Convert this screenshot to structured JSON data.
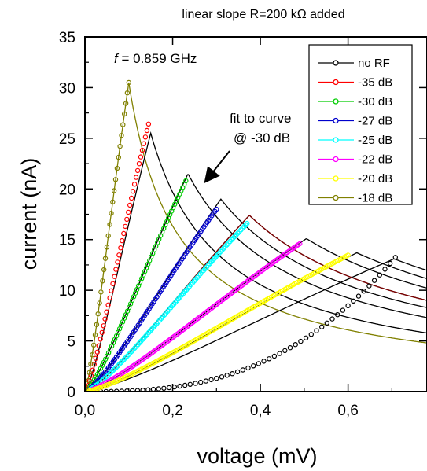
{
  "chart_data": {
    "type": "line",
    "title": "linear slope R=200 kΩ added",
    "xlabel": "voltage  (mV)",
    "ylabel": "current  (nA)",
    "xlim": [
      0,
      0.78
    ],
    "ylim": [
      0,
      35
    ],
    "x_ticks": [
      0.0,
      0.2,
      0.4,
      0.6
    ],
    "x_tick_labels": [
      "0,0",
      "0,2",
      "0,4",
      "0,6"
    ],
    "y_ticks": [
      0,
      5,
      10,
      15,
      20,
      25,
      30,
      35
    ],
    "y_tick_labels": [
      "0",
      "5",
      "10",
      "15",
      "20",
      "25",
      "30",
      "35"
    ],
    "grid": false,
    "legend_position": "top-right",
    "annotations": {
      "frequency_italic": "f",
      "frequency_rest": " = 0.859 GHz",
      "fit_line1": "fit to curve",
      "fit_line2": "@ -30 dB",
      "fit_arrow_to": [
        0.235,
        20.8
      ]
    },
    "series": [
      {
        "name": "no RF",
        "color": "#000000",
        "peak": [
          0.62,
          13.7
        ],
        "end": 0.0
      },
      {
        "name": "-35 dB",
        "color": "#ff0000",
        "peak": [
          0.14,
          25.5
        ],
        "end": 0.145
      },
      {
        "name": "-30 dB",
        "color": "#00cc00",
        "peak": [
          0.23,
          20.8
        ],
        "end": 0.23
      },
      {
        "name": "-27 dB",
        "color": "#0000cc",
        "peak": [
          0.3,
          18.0
        ],
        "end": 0.3
      },
      {
        "name": "-25 dB",
        "color": "#00ffff",
        "peak": [
          0.37,
          16.6
        ],
        "end": 0.37
      },
      {
        "name": "-22 dB",
        "color": "#ff00ff",
        "peak": [
          0.5,
          14.9
        ],
        "end": 0.49
      },
      {
        "name": "-20 dB",
        "color": "#ffff00",
        "peak": [
          0.615,
          13.8
        ],
        "end": 0.6
      },
      {
        "name": "-18 dB",
        "color": "#808000",
        "peak": [
          0.1,
          30.5
        ],
        "end": 0.1
      }
    ],
    "fit_curves": [
      {
        "peak": [
          0.1,
          30.5
        ],
        "color": "#808000"
      },
      {
        "peak": [
          0.15,
          25.5
        ],
        "color": "#000000"
      },
      {
        "peak": [
          0.235,
          21.5
        ],
        "color": "#000000"
      },
      {
        "peak": [
          0.31,
          19.0
        ],
        "color": "#000000"
      },
      {
        "peak": [
          0.375,
          17.4
        ],
        "color": "#000000"
      },
      {
        "peak": [
          0.505,
          15.1
        ],
        "color": "#000000"
      },
      {
        "peak": [
          0.62,
          13.7
        ],
        "color": "#000000"
      },
      {
        "peak": [
          0.705,
          13.1
        ],
        "color": "#000000"
      },
      {
        "peak": [
          0.375,
          17.4
        ],
        "color": "#800000"
      }
    ]
  }
}
